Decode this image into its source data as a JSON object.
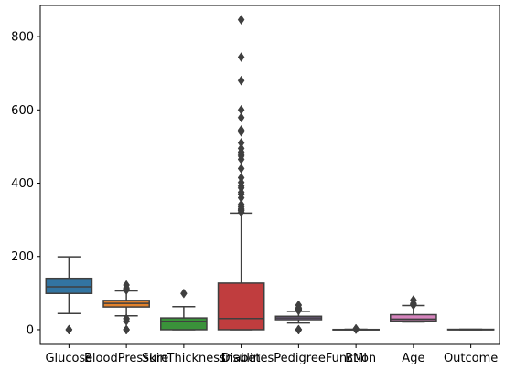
{
  "chart_data": {
    "type": "box",
    "title": "",
    "xlabel": "",
    "ylabel": "",
    "ylim": [
      -40,
      885
    ],
    "yticks": [
      0,
      200,
      400,
      600,
      800
    ],
    "categories": [
      "Glucose",
      "BloodPressure",
      "SkinThickness",
      "Insulin",
      "DiabetesPedigreeFunction",
      "BMI",
      "Age",
      "Outcome"
    ],
    "boxes": [
      {
        "name": "Glucose",
        "color": "#3274a1",
        "whislo": 44,
        "q1": 99,
        "med": 117,
        "q3": 140.25,
        "whishi": 199,
        "fliers": [
          0,
          0,
          0,
          0,
          0
        ]
      },
      {
        "name": "BloodPressure",
        "color": "#e1812c",
        "whislo": 38,
        "q1": 62,
        "med": 72,
        "q3": 80,
        "whishi": 106,
        "fliers": [
          0,
          0,
          0,
          0,
          24,
          30,
          30,
          108,
          110,
          110,
          114,
          122
        ]
      },
      {
        "name": "SkinThickness",
        "color": "#3a923a",
        "whislo": 0,
        "q1": 0,
        "med": 23,
        "q3": 32,
        "whishi": 63,
        "fliers": [
          99
        ]
      },
      {
        "name": "Insulin",
        "color": "#c03d3e",
        "whislo": 0,
        "q1": 0,
        "med": 30.5,
        "q3": 127.25,
        "whishi": 318,
        "fliers": [
          321,
          325,
          326,
          328,
          330,
          335,
          342,
          360,
          370,
          375,
          387,
          392,
          402,
          415,
          440,
          465,
          474,
          478,
          485,
          495,
          510,
          540,
          543,
          545,
          579,
          600,
          680,
          744,
          846
        ]
      },
      {
        "name": "BMI",
        "color": "#9372b2",
        "whislo": 18.2,
        "q1": 27.3,
        "med": 32,
        "q3": 36.6,
        "whishi": 50,
        "fliers": [
          0,
          0,
          0,
          0,
          52.3,
          53.2,
          55,
          57.3,
          59.4,
          67.1
        ]
      },
      {
        "name": "DiabetesPedigreeFunction",
        "color": "#845b53",
        "whislo": 0.078,
        "q1": 0.24,
        "med": 0.37,
        "q3": 0.63,
        "whishi": 1.19,
        "fliers": [
          1.2,
          1.4,
          1.7,
          2.1,
          2.42
        ]
      },
      {
        "name": "Age",
        "color": "#d684bd",
        "whislo": 21,
        "q1": 24,
        "med": 29,
        "q3": 41,
        "whishi": 66,
        "fliers": [
          67,
          68,
          69,
          70,
          72,
          81
        ]
      },
      {
        "name": "Outcome",
        "color": "#7f7f7f",
        "whislo": 0,
        "q1": 0,
        "med": 0,
        "q3": 1,
        "whishi": 1,
        "fliers": []
      }
    ],
    "grid": false,
    "legend": "none"
  }
}
